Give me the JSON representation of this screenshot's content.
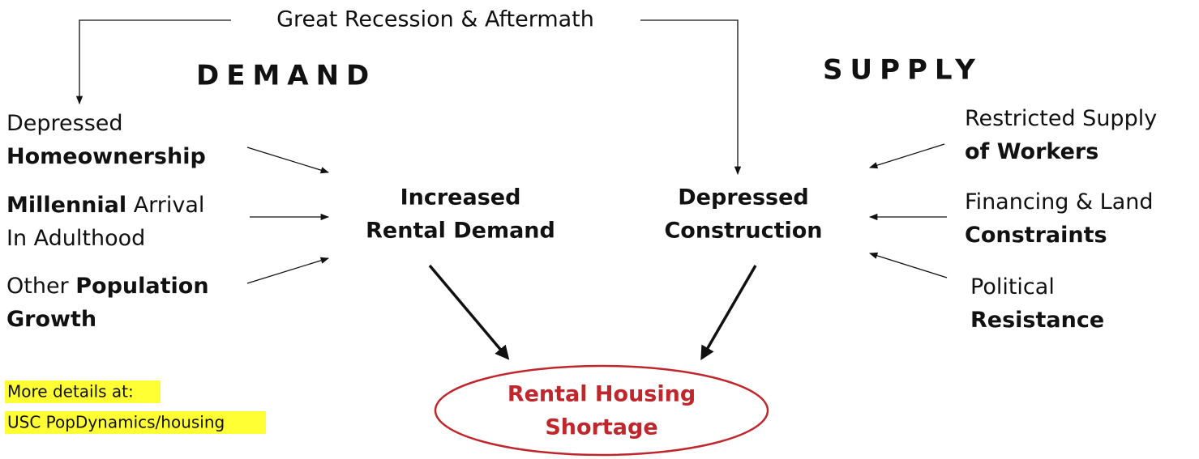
{
  "top_label": "Great Recession & Aftermath",
  "demand_heading": "DEMAND",
  "supply_heading": "SUPPLY",
  "demand_factors": [
    {
      "lines": [
        [
          {
            "text": "Depressed",
            "bold": false
          }
        ],
        [
          {
            "text": "Homeownership",
            "bold": true
          }
        ]
      ]
    },
    {
      "lines": [
        [
          {
            "text": "Millennial",
            "bold": true
          },
          {
            "text": " Arrival",
            "bold": false
          }
        ],
        [
          {
            "text": "In Adulthood",
            "bold": false
          }
        ]
      ]
    },
    {
      "lines": [
        [
          {
            "text": "Other ",
            "bold": false
          },
          {
            "text": "Population",
            "bold": true
          }
        ],
        [
          {
            "text": "Growth",
            "bold": true
          }
        ]
      ]
    }
  ],
  "supply_factors": [
    {
      "lines": [
        [
          {
            "text": "Restricted Supply",
            "bold": false
          }
        ],
        [
          {
            "text": "of Workers",
            "bold": true
          }
        ]
      ]
    },
    {
      "lines": [
        [
          {
            "text": "Financing & Land",
            "bold": false
          }
        ],
        [
          {
            "text": "Constraints",
            "bold": true
          }
        ]
      ]
    },
    {
      "lines": [
        [
          {
            "text": "Political",
            "bold": false
          }
        ],
        [
          {
            "text": "Resistance",
            "bold": true
          }
        ]
      ]
    }
  ],
  "center_nodes": [
    {
      "lines": [
        "Increased",
        "Rental Demand"
      ]
    },
    {
      "lines": [
        "Depressed",
        "Construction"
      ]
    }
  ],
  "outcome": {
    "lines": [
      "Rental Housing",
      "Shortage"
    ]
  },
  "note": {
    "lines": [
      "More details at:",
      "USC PopDynamics/housing"
    ]
  }
}
